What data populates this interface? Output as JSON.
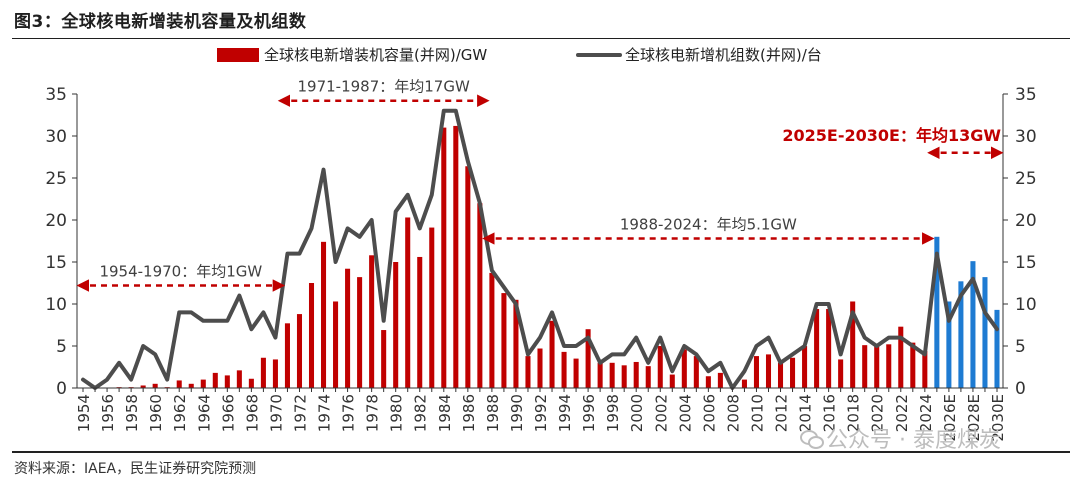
{
  "header": {
    "title": "图3：全球核电新增装机容量及机组数"
  },
  "footer": {
    "source": "资料来源：IAEA，民生证券研究院预测",
    "watermark": "公众号 · 泰度煤炭"
  },
  "colors": {
    "bar_actual": "#c00000",
    "bar_forecast": "#1e7bd2",
    "line": "#4d4d4d",
    "annotation": "#c00000"
  },
  "chart_data": {
    "type": "bar+line",
    "categories": [
      "1954",
      "1955",
      "1956",
      "1957",
      "1958",
      "1959",
      "1960",
      "1961",
      "1962",
      "1963",
      "1964",
      "1965",
      "1966",
      "1967",
      "1968",
      "1969",
      "1970",
      "1971",
      "1972",
      "1973",
      "1974",
      "1975",
      "1976",
      "1977",
      "1978",
      "1979",
      "1980",
      "1981",
      "1982",
      "1983",
      "1984",
      "1985",
      "1986",
      "1987",
      "1988",
      "1989",
      "1990",
      "1991",
      "1992",
      "1993",
      "1994",
      "1995",
      "1996",
      "1997",
      "1998",
      "1999",
      "2000",
      "2001",
      "2002",
      "2003",
      "2004",
      "2005",
      "2006",
      "2007",
      "2008",
      "2009",
      "2010",
      "2011",
      "2012",
      "2013",
      "2014",
      "2015",
      "2016",
      "2017",
      "2018",
      "2019",
      "2020",
      "2021",
      "2022",
      "2023",
      "2024",
      "2025E",
      "2026E",
      "2027E",
      "2028E",
      "2029E",
      "2030E"
    ],
    "x_tick_labels": [
      "1954",
      "1956",
      "1958",
      "1960",
      "1962",
      "1964",
      "1966",
      "1968",
      "1970",
      "1972",
      "1974",
      "1976",
      "1978",
      "1980",
      "1982",
      "1984",
      "1986",
      "1988",
      "1990",
      "1992",
      "1994",
      "1996",
      "1998",
      "2000",
      "2002",
      "2004",
      "2006",
      "2008",
      "2010",
      "2012",
      "2014",
      "2016",
      "2018",
      "2020",
      "2022",
      "2024",
      "2026E",
      "2028E",
      "2030E"
    ],
    "series": [
      {
        "name": "全球核电新增装机容量(并网)/GW",
        "type": "bar",
        "axis": "left",
        "values": [
          0.005,
          0,
          0.05,
          0.1,
          0.1,
          0.3,
          0.5,
          0.1,
          0.9,
          0.5,
          1.0,
          1.8,
          1.5,
          2.1,
          1.1,
          3.6,
          3.4,
          7.7,
          8.8,
          12.5,
          17.4,
          10.3,
          14.2,
          13.2,
          15.8,
          6.9,
          15.0,
          20.3,
          15.6,
          19.1,
          31.0,
          31.2,
          26.4,
          22.0,
          13.7,
          11.3,
          10.5,
          3.8,
          4.7,
          8.0,
          4.3,
          3.5,
          7.0,
          3.0,
          3.0,
          2.7,
          3.1,
          2.6,
          5.0,
          1.6,
          4.6,
          3.8,
          1.4,
          1.8,
          0,
          1.0,
          3.8,
          4.0,
          3.0,
          3.6,
          5.0,
          9.4,
          9.4,
          3.4,
          10.3,
          5.1,
          5.0,
          5.2,
          7.3,
          5.4,
          4.4,
          18.0,
          10.3,
          12.7,
          15.1,
          13.2,
          9.3
        ]
      },
      {
        "name": "全球核电新增机组数(并网)/台",
        "type": "line",
        "axis": "right",
        "values": [
          1,
          0,
          1,
          3,
          1,
          5,
          4,
          1,
          9,
          9,
          8,
          8,
          8,
          11,
          7,
          9,
          6,
          16,
          16,
          19,
          26,
          15,
          19,
          18,
          20,
          8,
          21,
          23,
          19,
          23,
          33,
          33,
          27,
          22,
          14,
          12,
          10,
          4,
          6,
          9,
          5,
          5,
          6,
          3,
          4,
          4,
          6,
          3,
          6,
          2,
          5,
          4,
          2,
          3,
          0,
          2,
          5,
          6,
          3,
          4,
          5,
          10,
          10,
          4,
          9,
          6,
          5,
          6,
          6,
          5,
          4,
          16,
          8,
          11,
          13,
          9,
          7
        ]
      }
    ],
    "forecast_categories": [
      "2025E",
      "2026E",
      "2027E",
      "2028E",
      "2029E",
      "2030E"
    ],
    "y_left": {
      "min": 0,
      "max": 35,
      "ticks": [
        0,
        5,
        10,
        15,
        20,
        25,
        30,
        35
      ]
    },
    "y_right": {
      "min": 0,
      "max": 35,
      "ticks": [
        0,
        5,
        10,
        15,
        20,
        25,
        30,
        35
      ]
    },
    "annotations": [
      {
        "text": "1954-1970：年均1GW",
        "from": "1954",
        "to": "1970",
        "level": 12.2,
        "bold": false,
        "text_color": "#404040"
      },
      {
        "text": "1971-1987：年均17GW",
        "from": "1971",
        "to": "1987",
        "level": 34.2,
        "bold": false,
        "text_color": "#404040"
      },
      {
        "text": "1988-2024：年均5.1GW",
        "from": "1988",
        "to": "2024",
        "level": 17.8,
        "bold": false,
        "text_color": "#404040"
      },
      {
        "text": "2025E-2030E：年均13GW",
        "from": "2025E",
        "to": "2030E",
        "level": 28.0,
        "bold": true,
        "text_color": "#c00000"
      }
    ]
  }
}
